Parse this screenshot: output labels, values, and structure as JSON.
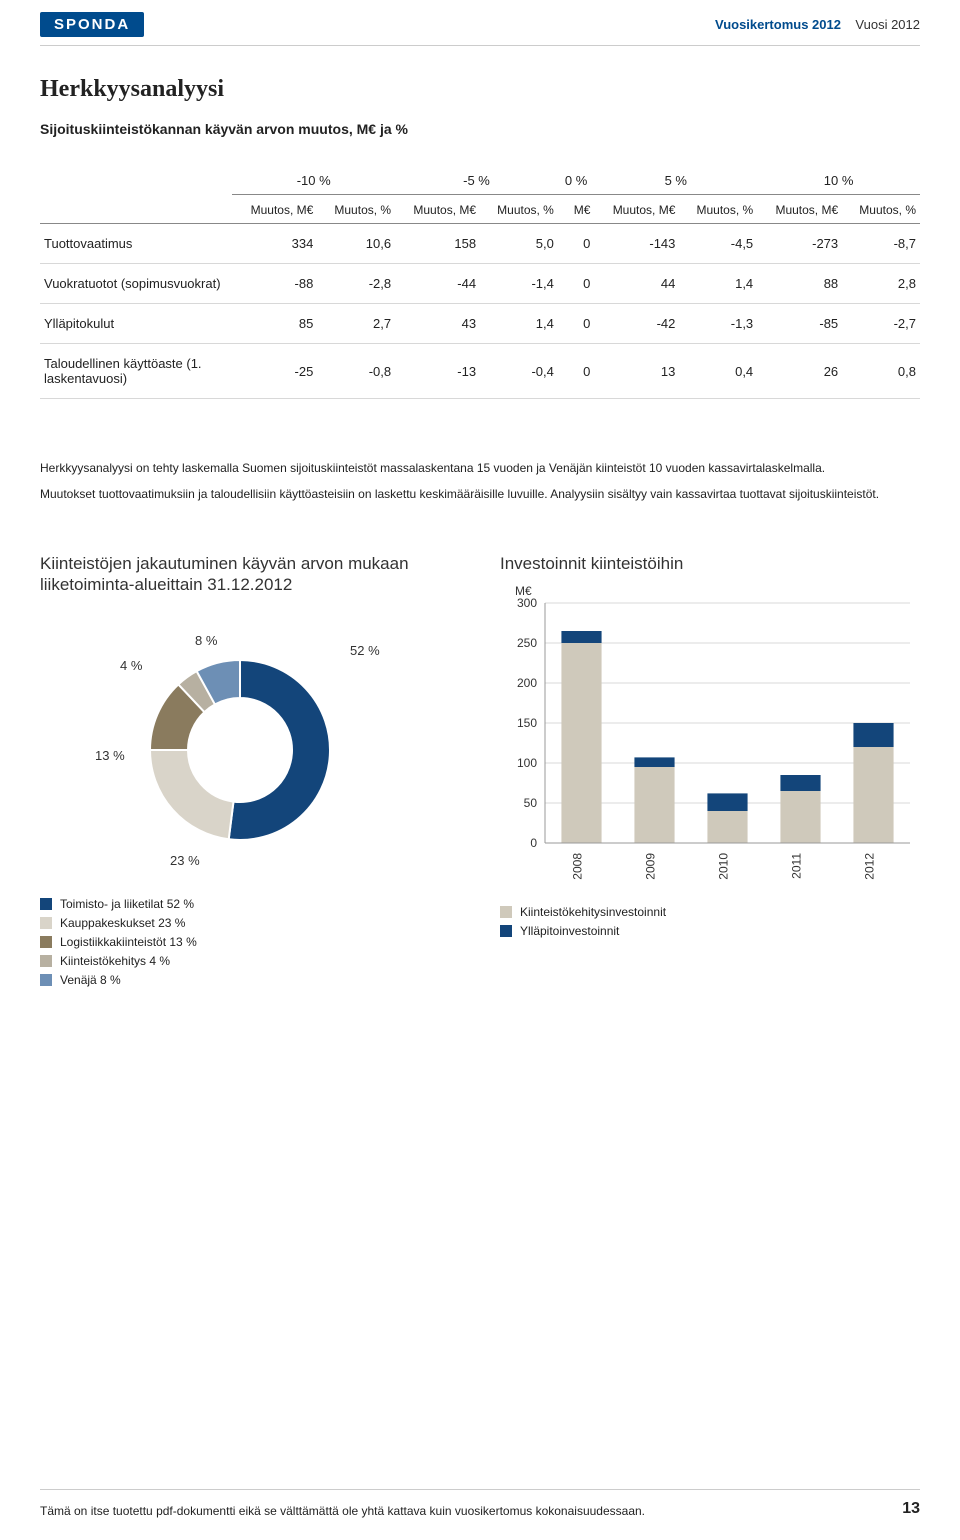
{
  "header": {
    "logo": "SPONDA",
    "right_bold": "Vuosikertomus 2012",
    "right_plain": "Vuosi 2012"
  },
  "section_title": "Herkkyysanalyysi",
  "subtitle": "Sijoituskiinteistökannan käyvän arvon muutos, M€ ja %",
  "table": {
    "group_headers": [
      "-10 %",
      "-5 %",
      "0 %",
      "5 %",
      "10 %"
    ],
    "sub_headers_pair": [
      "Muutos, M€",
      "Muutos, %"
    ],
    "sub_header_single": "M€",
    "rows": [
      {
        "label": "Tuottovaatimus",
        "cells": [
          "334",
          "10,6",
          "158",
          "5,0",
          "0",
          "-143",
          "-4,5",
          "-273",
          "-8,7"
        ]
      },
      {
        "label": "Vuokratuotot (sopimusvuokrat)",
        "cells": [
          "-88",
          "-2,8",
          "-44",
          "-1,4",
          "0",
          "44",
          "1,4",
          "88",
          "2,8"
        ]
      },
      {
        "label": "Ylläpitokulut",
        "cells": [
          "85",
          "2,7",
          "43",
          "1,4",
          "0",
          "-42",
          "-1,3",
          "-85",
          "-2,7"
        ]
      },
      {
        "label": "Taloudellinen käyttöaste (1. laskentavuosi)",
        "cells": [
          "-25",
          "-0,8",
          "-13",
          "-0,4",
          "0",
          "13",
          "0,4",
          "26",
          "0,8"
        ]
      }
    ]
  },
  "paragraph1": "Herkkyysanalyysi on tehty laskemalla Suomen sijoituskiinteistöt massalaskentana 15 vuoden ja Venäjän kiinteistöt 10 vuoden kassavirtalaskelmalla.",
  "paragraph2": "Muutokset tuottovaatimuksiin ja taloudellisiin käyttöasteisiin on laskettu keskimääräisille luvuille. Analyysiin sisältyy vain kassavirtaa tuottavat sijoituskiinteistöt.",
  "donut_chart": {
    "title": "Kiinteistöjen jakautuminen käyvän arvon mukaan liiketoiminta-alueittain 31.12.2012",
    "type": "donut",
    "slices": [
      {
        "label": "Toimisto- ja liiketilat 52 %",
        "value": 52,
        "color": "#13457a",
        "ext_label": "52 %"
      },
      {
        "label": "Kauppakeskukset 23 %",
        "value": 23,
        "color": "#d9d4c9",
        "ext_label": "23 %"
      },
      {
        "label": "Logistiikkakiinteistöt 13 %",
        "value": 13,
        "color": "#8a7b5e",
        "ext_label": "13 %"
      },
      {
        "label": "Kiinteistökehitys 4 %",
        "value": 4,
        "color": "#b7b0a1",
        "ext_label": "4 %"
      },
      {
        "label": "Venäjä 8 %",
        "value": 8,
        "color": "#6d8fb5",
        "ext_label": "8 %"
      }
    ],
    "inner_radius": 52,
    "outer_radius": 90,
    "label_fontsize": 13,
    "title_fontsize": 17,
    "background_color": "#ffffff"
  },
  "bar_chart": {
    "title": "Investoinnit kiinteistöihin",
    "type": "stacked-bar",
    "y_unit": "M€",
    "categories": [
      "2008",
      "2009",
      "2010",
      "2011",
      "2012"
    ],
    "series": [
      {
        "name": "Kiinteistökehitysinvestoinnit",
        "color": "#cfc9bb",
        "values": [
          250,
          95,
          40,
          65,
          120
        ]
      },
      {
        "name": "Ylläpitoinvestoinnit",
        "color": "#13457a",
        "values": [
          15,
          12,
          22,
          20,
          30
        ]
      }
    ],
    "ylim": [
      0,
      300
    ],
    "ytick_step": 50,
    "bar_width": 0.55,
    "grid_color": "#d9d9d9",
    "axis_color": "#999999",
    "title_fontsize": 17,
    "label_fontsize": 12,
    "background_color": "#ffffff"
  },
  "footer": {
    "text": "Tämä on itse tuotettu pdf-dokumentti eikä se välttämättä ole yhtä kattava kuin vuosikertomus kokonaisuudessaan.",
    "page": "13"
  }
}
